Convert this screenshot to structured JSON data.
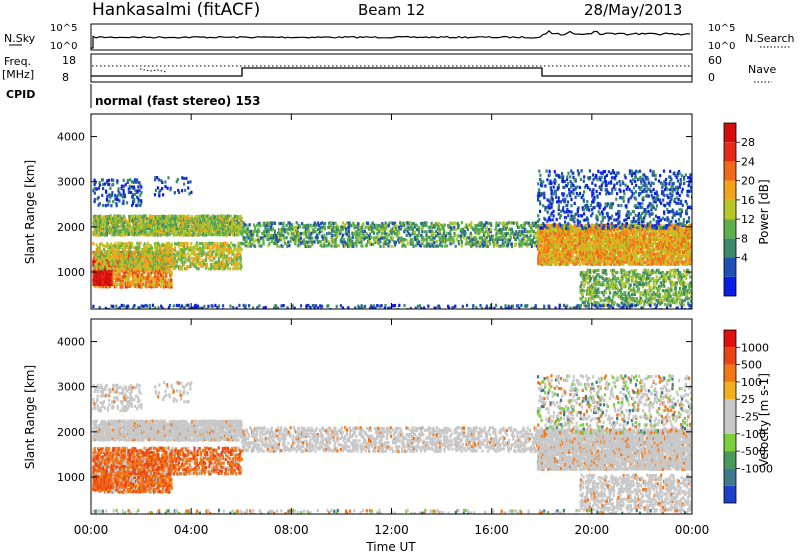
{
  "header": {
    "title": "Hankasalmi (fitACF)",
    "beam": "Beam 12",
    "date": "28/May/2013"
  },
  "summary": {
    "nsky_label": "N.Sky",
    "nsearch_label": "N.Search",
    "nsky_ticks": [
      "10^5",
      "10^0"
    ],
    "nsearch_ticks": [
      "10^5",
      "10^0"
    ],
    "freq_label": "Freq.",
    "freq_unit": "[MHz]",
    "freq_ticks": [
      "18",
      "8"
    ],
    "nave_label": "Nave",
    "nave_ticks": [
      "60",
      "0"
    ],
    "cpid_label": "CPID",
    "cpid_text": "normal (fast stereo) 153"
  },
  "chart_data": [
    {
      "type": "heatmap",
      "title": "",
      "ylabel": "Slant Range [km]",
      "ylim": [
        180,
        4500
      ],
      "yticks": [
        1000,
        2000,
        3000,
        4000
      ],
      "xlabel": "Time UT",
      "xticks": [
        "00:00",
        "04:00",
        "08:00",
        "12:00",
        "16:00",
        "20:00",
        "00:00"
      ],
      "colorbar": {
        "label": "Power [dB]",
        "ticks": [
          "28",
          "24",
          "20",
          "16",
          "12",
          "8",
          "4"
        ],
        "colors": [
          "#0b1ee6",
          "#1f4fb5",
          "#3c8a6a",
          "#5fb04a",
          "#b7c72a",
          "#f2a31c",
          "#f06a1a",
          "#e52b18",
          "#d40d0d"
        ]
      }
    },
    {
      "type": "heatmap",
      "title": "",
      "ylabel": "Slant Range [km]",
      "ylim": [
        180,
        4500
      ],
      "yticks": [
        1000,
        2000,
        3000,
        4000
      ],
      "xlabel": "Time UT",
      "xticks": [
        "00:00",
        "04:00",
        "08:00",
        "12:00",
        "16:00",
        "20:00",
        "00:00"
      ],
      "colorbar": {
        "label": "Velocity [m s-1]",
        "ticks": [
          "1000",
          "500",
          "100",
          "25",
          "-25",
          "-100",
          "-500",
          "-1000"
        ],
        "colors": [
          "#1e3fc8",
          "#3c7a8c",
          "#4a9a5a",
          "#7ccf3a",
          "#c8c8c8",
          "#c8c8c8",
          "#f0b020",
          "#f07818",
          "#e84414",
          "#e01010"
        ]
      }
    }
  ]
}
